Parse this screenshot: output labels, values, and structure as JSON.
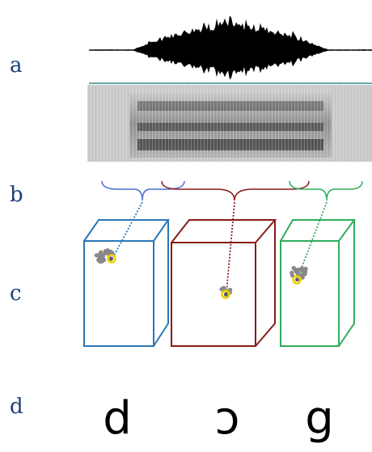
{
  "row_labels": {
    "a": "a",
    "b": "b",
    "c": "c",
    "d": "d"
  },
  "phonemes": {
    "first": "d",
    "second": "ɔ",
    "third": "g"
  },
  "colors": {
    "label": "#1f3f7a",
    "segment_1": "#2a77b8",
    "segment_2": "#8b1a1a",
    "segment_3": "#2fae5a",
    "waveform": "#000000",
    "waveform_baseline": "#5fa8a8",
    "centroid": "#f0d000",
    "cluster_points": "#888888"
  }
}
